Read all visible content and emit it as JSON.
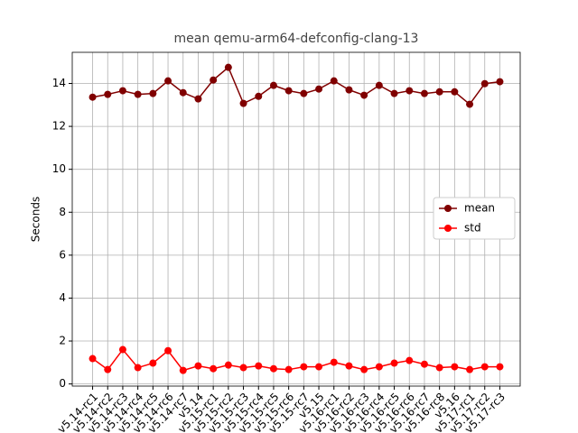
{
  "chart_data": {
    "type": "line",
    "title": "mean qemu-arm64-defconfig-clang-13",
    "y_label": "Seconds",
    "categories": [
      "v5.14-rc1",
      "v5.14-rc2",
      "v5.14-rc3",
      "v5.14-rc4",
      "v5.14-rc5",
      "v5.14-rc6",
      "v5.14-rc7",
      "v5.14",
      "v5.15-rc1",
      "v5.15-rc2",
      "v5.15-rc3",
      "v5.15-rc4",
      "v5.15-rc5",
      "v5.15-rc6",
      "v5.15-rc7",
      "v5.15",
      "v5.16-rc1",
      "v5.16-rc2",
      "v5.16-rc3",
      "v5.16-rc4",
      "v5.16-rc5",
      "v5.16-rc6",
      "v5.16-rc7",
      "v5.16-rc8",
      "v5.16",
      "v5.17-rc1",
      "v5.17-rc2",
      "v5.17-rc3"
    ],
    "series": [
      {
        "name": "mean",
        "color": "#800000",
        "values": [
          13.36,
          13.49,
          13.66,
          13.49,
          13.53,
          14.12,
          13.57,
          13.28,
          14.16,
          14.75,
          13.07,
          13.4,
          13.91,
          13.66,
          13.53,
          13.74,
          14.12,
          13.7,
          13.45,
          13.91,
          13.53,
          13.66,
          13.53,
          13.61,
          13.61,
          13.03,
          13.99,
          14.08
        ]
      },
      {
        "name": "std",
        "color": "#ff0000",
        "values": [
          1.18,
          0.67,
          1.6,
          0.76,
          0.97,
          1.55,
          0.63,
          0.84,
          0.71,
          0.88,
          0.76,
          0.84,
          0.71,
          0.67,
          0.8,
          0.8,
          1.01,
          0.84,
          0.67,
          0.8,
          0.97,
          1.09,
          0.92,
          0.76,
          0.8,
          0.67,
          0.8,
          0.8
        ]
      }
    ],
    "ylim": [
      -0.1,
      15.45
    ],
    "yticks": [
      0,
      2,
      4,
      6,
      8,
      10,
      12,
      14
    ],
    "grid": true,
    "legend": "center right"
  }
}
